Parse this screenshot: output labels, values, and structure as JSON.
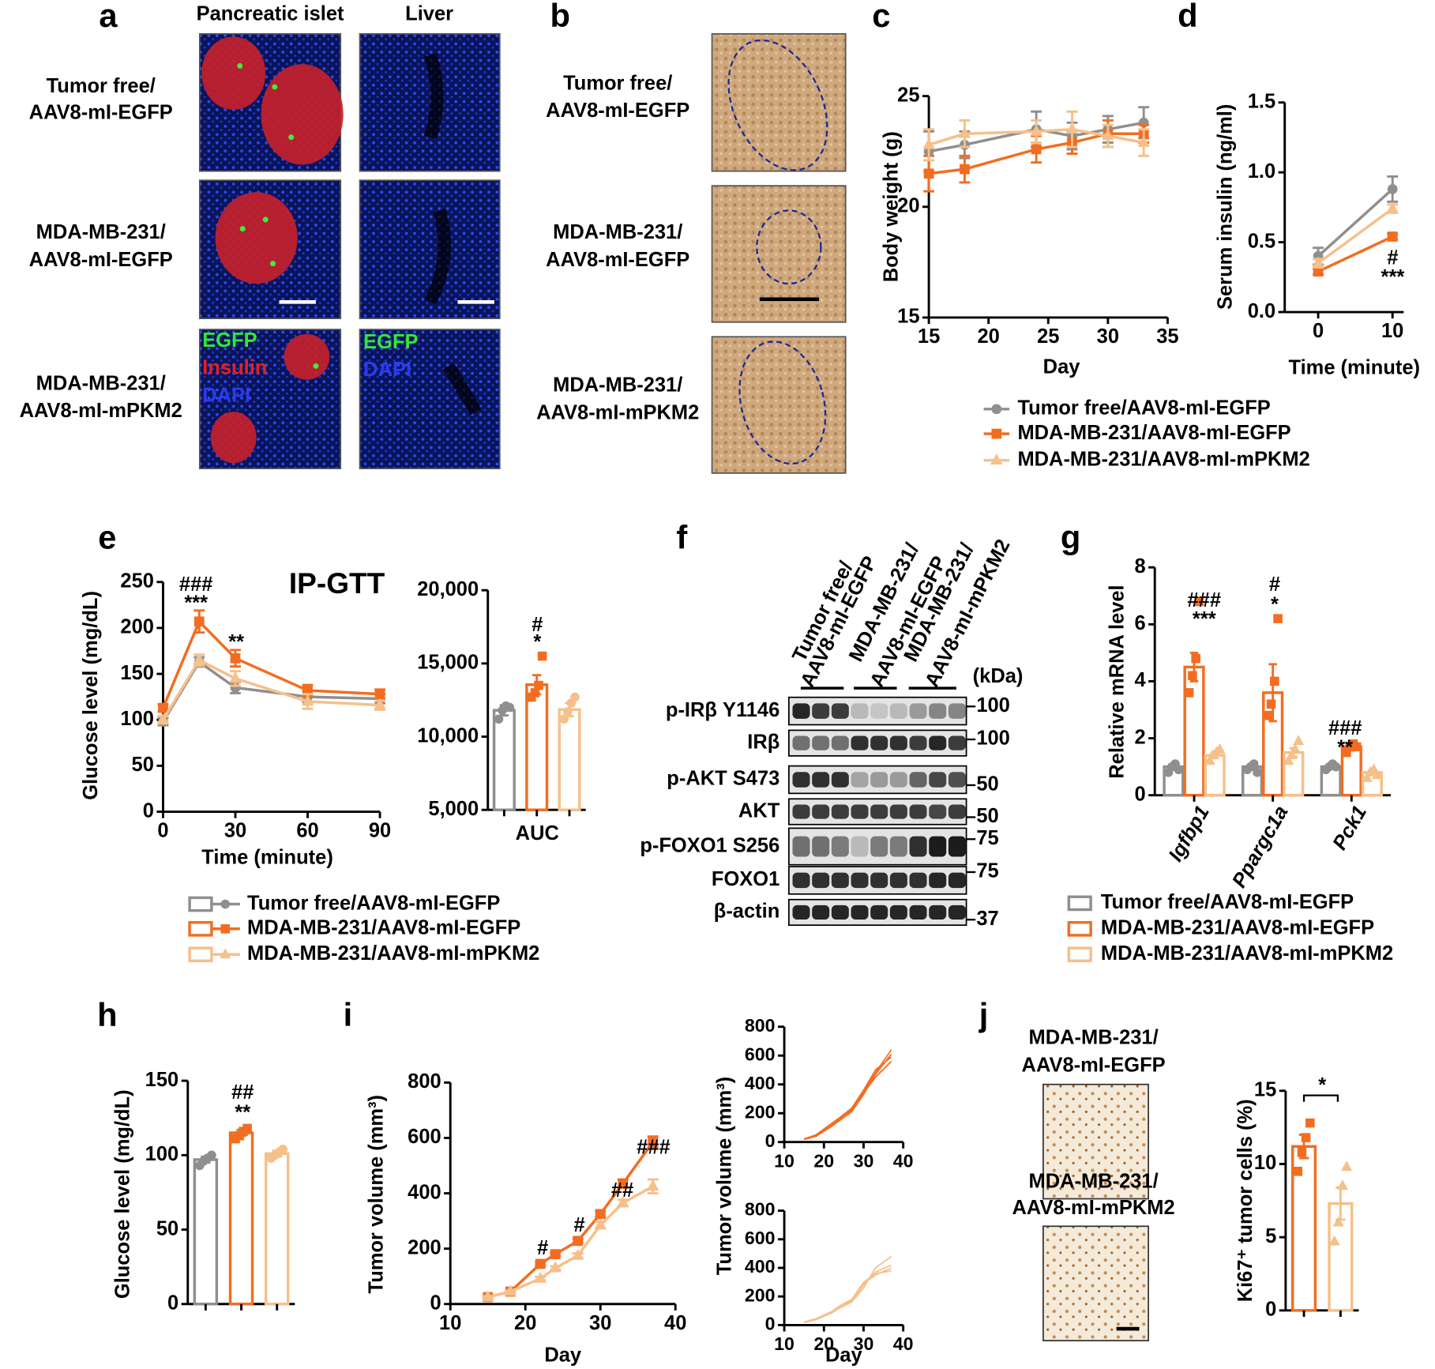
{
  "panel_labels": [
    "a",
    "b",
    "c",
    "d",
    "e",
    "f",
    "g",
    "h",
    "i",
    "j"
  ],
  "panel_a": {
    "column_titles": [
      "Pancreatic islet",
      "Liver"
    ],
    "row_labels": [
      [
        "Tumor free/",
        "AAV8-mI-EGFP"
      ],
      [
        "MDA-MB-231/",
        "AAV8-mI-EGFP"
      ],
      [
        "MDA-MB-231/",
        "AAV8-mI-mPKM2"
      ]
    ],
    "islet_stain_labels": [
      "EGFP",
      "Insulin",
      "DAPI"
    ],
    "liver_stain_labels": [
      "EGFP",
      "DAPI"
    ]
  },
  "panel_b": {
    "row_labels": [
      [
        "Tumor free/",
        "AAV8-mI-EGFP"
      ],
      [
        "MDA-MB-231/",
        "AAV8-mI-EGFP"
      ],
      [
        "MDA-MB-231/",
        "AAV8-mI-mPKM2"
      ]
    ]
  },
  "panel_f": {
    "lane_labels": [
      [
        "Tumor free/",
        "AAV8-mI-EGFP"
      ],
      [
        "MDA-MB-231/",
        "AAV8-mI-EGFP"
      ],
      [
        "MDA-MB-231/",
        "AAV8-mI-mPKM2"
      ]
    ],
    "unit": "(kDa)",
    "proteins": [
      "p-IRβ Y1146",
      "IRβ",
      "p-AKT S473",
      "AKT",
      "p-FOXO1 S256",
      "FOXO1",
      "β-actin"
    ],
    "size_markers": [
      100,
      100,
      50,
      50,
      75,
      75,
      37
    ]
  },
  "panel_j": {
    "row_labels": [
      [
        "MDA-MB-231/",
        "AAV8-mI-EGFP"
      ],
      [
        "MDA-MB-231/",
        "AAV8-mI-mPKM2"
      ]
    ]
  },
  "chart_data": [
    {
      "type": "line",
      "x_label": "Day",
      "y_label": "Body weight (g)",
      "x": [
        15,
        18,
        24,
        27,
        30,
        33
      ],
      "xlim": [
        15,
        35
      ],
      "xticks": [
        15,
        20,
        25,
        30,
        35
      ],
      "ylim": [
        15,
        25
      ],
      "yticks": [
        15,
        20,
        25
      ],
      "series": [
        {
          "name": "Tumor free/AAV8-mI-EGFP",
          "color": "#8f8f8f",
          "marker": "circle",
          "values": [
            22.5,
            22.8,
            23.5,
            23.2,
            23.5,
            23.8
          ],
          "errors": [
            0.9,
            0.6,
            0.8,
            0.6,
            0.6,
            0.7
          ]
        },
        {
          "name": "MDA-MB-231/AAV8-mI-EGFP",
          "color": "#f26d21",
          "marker": "square",
          "values": [
            21.5,
            21.7,
            22.6,
            22.9,
            23.3,
            23.3
          ],
          "errors": [
            0.8,
            0.6,
            0.6,
            0.5,
            0.6,
            0.4
          ]
        },
        {
          "name": "MDA-MB-231/AAV8-mI-mPKM2",
          "color": "#f5c08a",
          "marker": "triangle",
          "values": [
            22.8,
            23.3,
            23.4,
            23.5,
            23.2,
            22.9
          ],
          "errors": [
            0.7,
            0.6,
            0.5,
            0.8,
            0.5,
            0.6
          ]
        }
      ]
    },
    {
      "type": "line",
      "x_label": "Time (minute)",
      "y_label": "Serum insulin (ng/ml)",
      "x": [
        0,
        10
      ],
      "xlim": [
        -4.5,
        11.5
      ],
      "xticks": [
        0,
        10
      ],
      "ylim": [
        0,
        1.5
      ],
      "yticks": [
        {
          "value": 0,
          "label": "0.0"
        },
        {
          "value": 0.5,
          "label": "0.5"
        },
        {
          "value": 1,
          "label": "1.0"
        },
        {
          "value": 1.5,
          "label": "1.5"
        }
      ],
      "series": [
        {
          "color": "#8f8f8f",
          "marker": "circle",
          "values": [
            0.4,
            0.88
          ],
          "errors": [
            0.06,
            0.09
          ]
        },
        {
          "color": "#f26d21",
          "marker": "square",
          "values": [
            0.29,
            0.54
          ],
          "errors": [
            0.02,
            0.02
          ]
        },
        {
          "color": "#f5c08a",
          "marker": "triangle",
          "values": [
            0.35,
            0.74
          ],
          "errors": [
            0.03,
            0.03
          ]
        }
      ],
      "annotations": [
        "#",
        "***"
      ]
    },
    {
      "type": "line",
      "title": "IP-GTT",
      "x_label": "Time (minute)",
      "y_label": "Glucose level (mg/dL)",
      "x": [
        0,
        15,
        30,
        60,
        90
      ],
      "xlim": [
        0,
        90
      ],
      "xticks": [
        0,
        30,
        60,
        90
      ],
      "ylim": [
        0,
        250
      ],
      "yticks": [
        0,
        50,
        100,
        150,
        200,
        250
      ],
      "series": [
        {
          "name": "Tumor free/AAV8-mI-EGFP",
          "color": "#8f8f8f",
          "marker": "circle",
          "values": [
            98,
            163,
            135,
            125,
            123
          ],
          "errors": [
            4,
            5,
            6,
            6,
            5
          ]
        },
        {
          "name": "MDA-MB-231/AAV8-mI-EGFP",
          "color": "#f26d21",
          "marker": "square",
          "values": [
            113,
            207,
            167,
            132,
            128
          ],
          "errors": [
            4,
            12,
            9,
            6,
            5
          ]
        },
        {
          "name": "MDA-MB-231/AAV8-mI-mPKM2",
          "color": "#f5c08a",
          "marker": "triangle",
          "values": [
            100,
            165,
            145,
            120,
            116
          ],
          "errors": [
            4,
            6,
            8,
            8,
            5
          ]
        }
      ],
      "annotations": [
        "###",
        "***",
        "**"
      ]
    },
    {
      "type": "bar",
      "x_label": "AUC",
      "categories": [
        null,
        null,
        null
      ],
      "values": [
        11800,
        13550,
        11850
      ],
      "errors": [
        350,
        650,
        450
      ],
      "colors": [
        "#8f8f8f",
        "#f26d21",
        "#f5c08a"
      ],
      "markers": [
        "circle",
        "square",
        "circle"
      ],
      "points": [
        [
          11200,
          11800,
          12100,
          12000
        ],
        [
          12700,
          13000,
          13500,
          15500
        ],
        [
          11200,
          11700,
          12300,
          12700
        ]
      ],
      "ylim": [
        5000,
        20000
      ],
      "yticks": [
        {
          "value": 5000,
          "label": "5,000"
        },
        {
          "value": 10000,
          "label": "10,000"
        },
        {
          "value": 15000,
          "label": "15,000"
        },
        {
          "value": 20000,
          "label": "20,000"
        }
      ],
      "annotations": [
        "#",
        "*"
      ]
    },
    {
      "type": "bar",
      "y_label": "Relative mRNA level",
      "categories": [
        "Igfbp1",
        "Ppargc1a",
        "Pck1"
      ],
      "ylim": [
        0,
        8
      ],
      "yticks": [
        0,
        2,
        4,
        6,
        8
      ],
      "series": [
        {
          "name": "Tumor free/AAV8-mI-EGFP",
          "color": "#8f8f8f",
          "marker": "circle",
          "values": [
            1.0,
            1.0,
            1.0
          ],
          "errors": [
            0.08,
            0.1,
            0.05
          ],
          "points": [
            [
              0.8,
              1.0,
              1.1,
              0.9
            ],
            [
              0.9,
              1.0,
              1.1,
              0.8
            ],
            [
              0.9,
              1.0,
              1.1,
              1.0
            ]
          ]
        },
        {
          "name": "MDA-MB-231/AAV8-mI-EGFP",
          "color": "#f26d21",
          "marker": "square",
          "values": [
            4.5,
            3.6,
            1.7
          ],
          "errors": [
            0.5,
            1.0,
            0.1
          ],
          "points": [
            [
              3.6,
              4.2,
              4.8,
              6.8
            ],
            [
              2.8,
              3.2,
              4.0,
              6.2
            ],
            [
              1.5,
              1.7,
              1.8,
              1.7
            ]
          ]
        },
        {
          "name": "MDA-MB-231/AAV8-mI-mPKM2",
          "color": "#f5c08a",
          "marker": "triangle",
          "values": [
            1.4,
            1.5,
            0.8
          ],
          "errors": [
            0.1,
            0.15,
            0.08
          ],
          "points": [
            [
              1.2,
              1.4,
              1.5,
              1.6
            ],
            [
              1.2,
              1.4,
              1.6,
              1.9
            ],
            [
              0.6,
              0.8,
              0.9,
              0.7
            ]
          ]
        }
      ],
      "annotations": [
        [
          "###",
          "***"
        ],
        [
          "#",
          "*"
        ],
        [
          "###",
          "**"
        ]
      ]
    },
    {
      "type": "bar",
      "y_label": "Glucose level (mg/dL)",
      "categories": [
        null,
        null,
        null
      ],
      "values": [
        97,
        115,
        101
      ],
      "errors": [
        2,
        2,
        2
      ],
      "colors": [
        "#8f8f8f",
        "#f26d21",
        "#f5c08a"
      ],
      "markers": [
        "circle",
        "square",
        "circle"
      ],
      "points": [
        [
          93,
          96,
          98,
          100
        ],
        [
          111,
          113,
          116,
          118
        ],
        [
          98,
          100,
          102,
          104
        ]
      ],
      "ylim": [
        0,
        150
      ],
      "yticks": [
        0,
        50,
        100,
        150
      ],
      "annotations": [
        "##",
        "**"
      ]
    },
    {
      "type": "line",
      "x_label": "Day",
      "y_label": "Tumor volume (mm³)",
      "x": [
        15,
        18,
        22,
        24,
        27,
        30,
        33,
        37
      ],
      "xlim": [
        10,
        40
      ],
      "xticks": [
        10,
        20,
        30,
        40
      ],
      "ylim": [
        0,
        800
      ],
      "yticks": [
        0,
        200,
        400,
        600,
        800
      ],
      "series": [
        {
          "color": "#f26d21",
          "marker": "square",
          "values": [
            25,
            45,
            145,
            180,
            228,
            325,
            435,
            585
          ],
          "errors": [
            3,
            4,
            6,
            6,
            8,
            10,
            15,
            20
          ]
        },
        {
          "color": "#f5c08a",
          "marker": "triangle",
          "values": [
            25,
            45,
            92,
            130,
            175,
            285,
            365,
            425
          ],
          "errors": [
            3,
            4,
            6,
            6,
            8,
            12,
            12,
            25
          ]
        }
      ],
      "annotations": [
        "#",
        "#",
        "##",
        "###"
      ]
    },
    {
      "type": "line",
      "y_label": "Tumor volume (mm³)",
      "x": [
        15,
        18,
        22,
        24,
        27,
        30,
        33,
        37
      ],
      "xlim": [
        10,
        40
      ],
      "xticks": [
        10,
        20,
        30,
        40
      ],
      "ylim": [
        0,
        800
      ],
      "yticks": [
        0,
        200,
        400,
        600,
        800
      ],
      "series": [
        {
          "color": "#f26d21",
          "values": [
            20,
            45,
            120,
            160,
            230,
            350,
            480,
            640
          ]
        },
        {
          "color": "#f26d21",
          "values": [
            18,
            40,
            110,
            150,
            210,
            330,
            470,
            610
          ]
        },
        {
          "color": "#f26d21",
          "values": [
            22,
            50,
            130,
            170,
            235,
            360,
            500,
            590
          ]
        },
        {
          "color": "#f26d21",
          "values": [
            20,
            48,
            125,
            165,
            220,
            340,
            450,
            560
          ]
        }
      ]
    },
    {
      "type": "line",
      "x_label": "Day",
      "x": [
        15,
        18,
        22,
        24,
        27,
        30,
        33,
        37
      ],
      "xlim": [
        10,
        40
      ],
      "xticks": [
        10,
        20,
        30,
        40
      ],
      "ylim": [
        0,
        800
      ],
      "yticks": [
        0,
        200,
        400,
        600,
        800
      ],
      "series": [
        {
          "color": "#f5c08a",
          "values": [
            20,
            40,
            90,
            125,
            170,
            280,
            370,
            420
          ]
        },
        {
          "color": "#f5c08a",
          "values": [
            18,
            38,
            85,
            120,
            160,
            260,
            400,
            480
          ]
        },
        {
          "color": "#f5c08a",
          "values": [
            22,
            45,
            95,
            135,
            180,
            300,
            360,
            380
          ]
        },
        {
          "color": "#f5c08a",
          "values": [
            20,
            42,
            92,
            130,
            175,
            290,
            350,
            400
          ]
        }
      ]
    },
    {
      "type": "bar",
      "y_label": "Ki67⁺ tumor cells (%)",
      "categories": [
        null,
        null
      ],
      "values": [
        11.2,
        7.3
      ],
      "errors": [
        0.8,
        1.1
      ],
      "colors": [
        "#f26d21",
        "#f5c08a"
      ],
      "markers": [
        "square",
        "triangle"
      ],
      "points": [
        [
          9.5,
          10.8,
          11.8,
          12.8
        ],
        [
          4.7,
          6.0,
          8.5,
          9.8
        ]
      ],
      "ylim": [
        0,
        15
      ],
      "yticks": [
        0,
        5,
        10,
        15
      ],
      "annotations": [
        "*"
      ]
    }
  ]
}
